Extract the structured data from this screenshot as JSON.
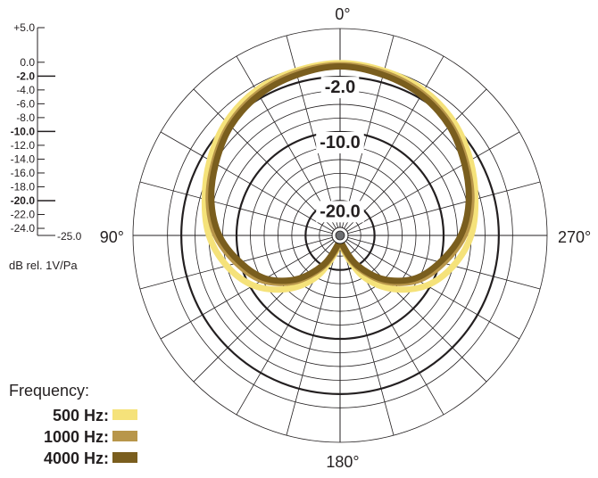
{
  "chart_data": {
    "type": "polar",
    "unit_label": "dB rel. 1V/Pa",
    "scale_ticks": [
      {
        "label": "+5.0",
        "db": 5,
        "bold": false
      },
      {
        "label": "0.0",
        "db": 0,
        "bold": false
      },
      {
        "label": "-2.0",
        "db": -2,
        "bold": true
      },
      {
        "label": "-4.0",
        "db": -4,
        "bold": false
      },
      {
        "label": "-6.0",
        "db": -6,
        "bold": false
      },
      {
        "label": "-8.0",
        "db": -8,
        "bold": false
      },
      {
        "label": "-10.0",
        "db": -10,
        "bold": true
      },
      {
        "label": "-12.0",
        "db": -12,
        "bold": false
      },
      {
        "label": "-14.0",
        "db": -14,
        "bold": false
      },
      {
        "label": "-16.0",
        "db": -16,
        "bold": false
      },
      {
        "label": "-18.0",
        "db": -18,
        "bold": false
      },
      {
        "label": "-20.0",
        "db": -20,
        "bold": true
      },
      {
        "label": "-22.0",
        "db": -22,
        "bold": false
      },
      {
        "label": "-24.0",
        "db": -24,
        "bold": false
      }
    ],
    "scale_bottom_label": "-25.0",
    "r_range": [
      -25,
      5
    ],
    "rings_db": [
      5,
      0,
      -2,
      -4,
      -6,
      -8,
      -10,
      -12,
      -14,
      -16,
      -18,
      -20,
      -22,
      -24
    ],
    "bold_rings_db": [
      -2,
      -10,
      -20
    ],
    "ring_labels": [
      {
        "text": "-2.0",
        "db": -2
      },
      {
        "text": "-10.0",
        "db": -10
      },
      {
        "text": "-20.0",
        "db": -20
      }
    ],
    "spoke_step_deg": 15,
    "angle_labels": [
      {
        "text": "0°",
        "deg": 0
      },
      {
        "text": "90°",
        "deg": 90
      },
      {
        "text": "180°",
        "deg": 180
      },
      {
        "text": "270°",
        "deg": 270
      }
    ],
    "angle_direction": "counterclockwise",
    "legend_title": "Frequency:",
    "legend_position": "bottom-left",
    "series": [
      {
        "name": "500 Hz:",
        "color": "#f5e27a",
        "angles": [
          0,
          15,
          30,
          45,
          60,
          75,
          90,
          105,
          120,
          135,
          150,
          165,
          180
        ],
        "db": [
          0,
          -0.3,
          -0.7,
          -1.7,
          -3.2,
          -4.7,
          -6.0,
          -8.0,
          -10.5,
          -14.0,
          -18.0,
          -22.5,
          -25.0
        ]
      },
      {
        "name": "1000 Hz:",
        "color": "#b8964a",
        "angles": [
          0,
          15,
          30,
          45,
          60,
          75,
          90,
          105,
          120,
          135,
          150,
          165,
          180
        ],
        "db": [
          -0.3,
          -0.6,
          -1.2,
          -2.3,
          -3.9,
          -5.3,
          -7.0,
          -9.5,
          -12.0,
          -15.5,
          -19.5,
          -23.0,
          -25.0
        ]
      },
      {
        "name": "4000 Hz:",
        "color": "#7a5e1e",
        "angles": [
          0,
          15,
          30,
          45,
          60,
          75,
          90,
          105,
          120,
          135,
          150,
          165,
          180
        ],
        "db": [
          -0.5,
          -0.9,
          -1.5,
          -2.6,
          -4.2,
          -5.7,
          -7.5,
          -10.0,
          -12.5,
          -16.0,
          -20.0,
          -23.5,
          -25.0
        ]
      }
    ]
  }
}
